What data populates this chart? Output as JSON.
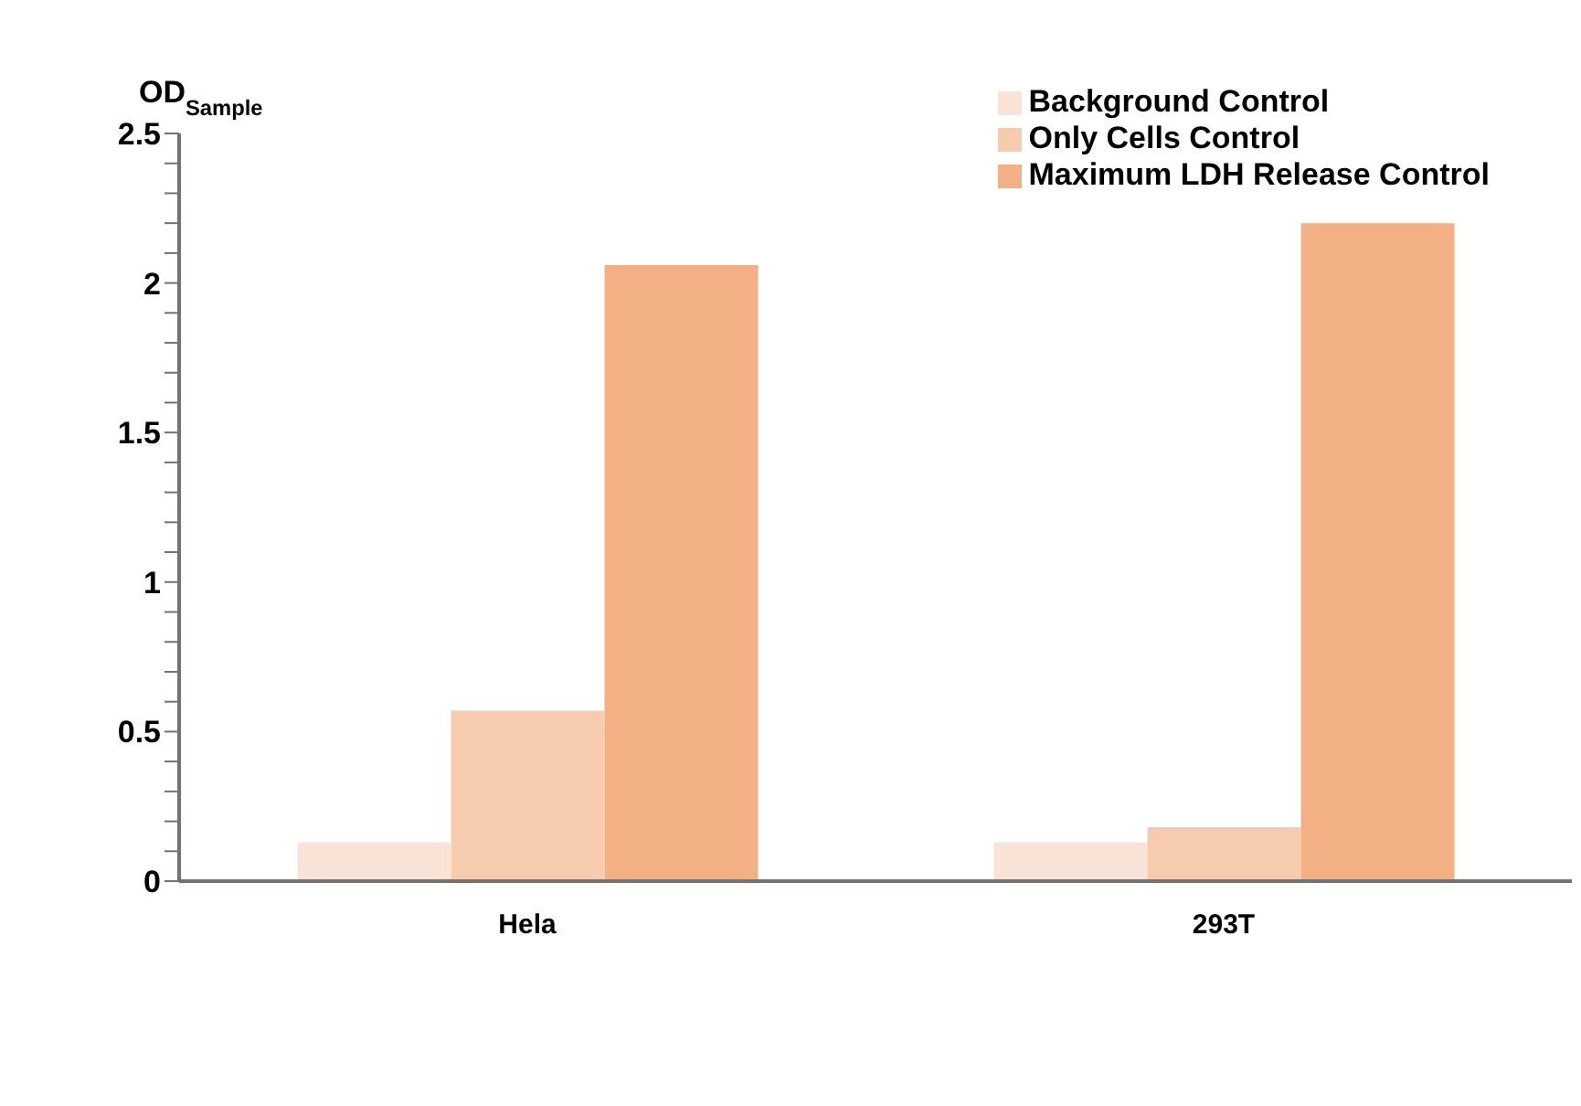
{
  "chart_data": {
    "type": "bar",
    "ylabel": "OD$_{Sample}$",
    "categories": [
      "Hela",
      "293T"
    ],
    "series": [
      {
        "name": "Background Control",
        "color": "#f9e3d6",
        "values": [
          0.13,
          0.13
        ]
      },
      {
        "name": "Only Cells Control",
        "color": "#f7cbae",
        "values": [
          0.57,
          0.18
        ]
      },
      {
        "name": "Maximum LDH Release Control",
        "color": "#f3b084",
        "values": [
          2.06,
          2.2
        ]
      }
    ],
    "ylim": [
      0,
      2.5
    ],
    "yticks": [
      0,
      {
        "value": 0.1,
        "label": null
      },
      {
        "value": 0.2,
        "label": null
      },
      {
        "value": 0.3,
        "label": null
      },
      {
        "value": 0.4,
        "label": null
      },
      0.5,
      {
        "value": 0.6,
        "label": null
      },
      {
        "value": 0.7,
        "label": null
      },
      {
        "value": 0.8,
        "label": null
      },
      {
        "value": 0.9,
        "label": null
      },
      1,
      {
        "value": 1.1,
        "label": null
      },
      {
        "value": 1.2,
        "label": null
      },
      {
        "value": 1.3,
        "label": null
      },
      {
        "value": 1.4,
        "label": null
      },
      1.5,
      {
        "value": 1.6,
        "label": null
      },
      {
        "value": 1.7,
        "label": null
      },
      {
        "value": 1.8,
        "label": null
      },
      {
        "value": 1.9,
        "label": null
      },
      2,
      {
        "value": 2.1,
        "label": null
      },
      {
        "value": 2.2,
        "label": null
      },
      {
        "value": 2.3,
        "label": null
      },
      {
        "value": 2.4,
        "label": null
      },
      2.5
    ],
    "grid": false,
    "legend": "top right"
  }
}
